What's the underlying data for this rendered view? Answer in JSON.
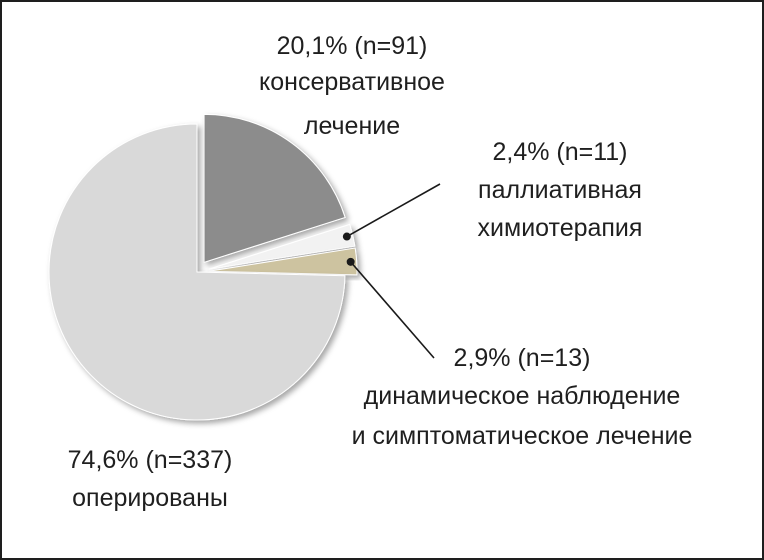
{
  "chart_data": {
    "type": "pie",
    "title": "",
    "slices": [
      {
        "value": 20.1,
        "percent_label": "20,1% (n=91)",
        "label_lines": [
          "консервативное",
          "лечение"
        ],
        "color": "#8c8c8c",
        "exploded": true
      },
      {
        "value": 2.4,
        "percent_label": "2,4% (n=11)",
        "label_lines": [
          "паллиативная",
          "химиотерапия"
        ],
        "color": "#f2f2f2",
        "exploded": true
      },
      {
        "value": 2.9,
        "percent_label": "2,9% (n=13)",
        "label_lines": [
          "динамическое  наблюдение",
          "и симптоматическое  лечение"
        ],
        "color": "#cdc3a0",
        "exploded": true
      },
      {
        "value": 74.6,
        "percent_label": "74,6% (n=337)",
        "label_lines": [
          "оперированы"
        ],
        "color": "#d9d9d9",
        "exploded": false
      }
    ],
    "start_angle": "12 o'clock",
    "direction": "clockwise",
    "legend": "none",
    "leader_lines": [
      1,
      2
    ]
  }
}
